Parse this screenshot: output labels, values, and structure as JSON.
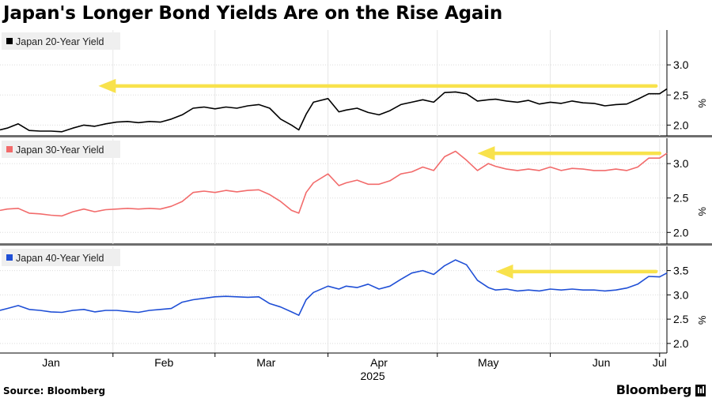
{
  "title": "Japan's Longer Bond Yields Are on the Rise Again",
  "source": "Source: Bloomberg",
  "brand": "Bloomberg",
  "unit_label": "%",
  "chart_data": [
    {
      "type": "line",
      "series": [
        {
          "name": "Japan 20-Year Yield",
          "color": "#000000",
          "x": [
            "2025-01-01",
            "2025-01-03",
            "2025-01-06",
            "2025-01-09",
            "2025-01-12",
            "2025-01-15",
            "2025-01-18",
            "2025-01-21",
            "2025-01-24",
            "2025-01-27",
            "2025-01-30",
            "2025-02-02",
            "2025-02-05",
            "2025-02-08",
            "2025-02-11",
            "2025-02-14",
            "2025-02-17",
            "2025-02-20",
            "2025-02-23",
            "2025-02-26",
            "2025-03-01",
            "2025-03-04",
            "2025-03-07",
            "2025-03-10",
            "2025-03-13",
            "2025-03-16",
            "2025-03-19",
            "2025-03-22",
            "2025-03-24",
            "2025-03-26",
            "2025-03-28",
            "2025-04-01",
            "2025-04-04",
            "2025-04-06",
            "2025-04-09",
            "2025-04-12",
            "2025-04-15",
            "2025-04-18",
            "2025-04-21",
            "2025-04-24",
            "2025-04-27",
            "2025-04-30",
            "2025-05-03",
            "2025-05-06",
            "2025-05-09",
            "2025-05-12",
            "2025-05-15",
            "2025-05-17",
            "2025-05-20",
            "2025-05-23",
            "2025-05-26",
            "2025-05-29",
            "2025-06-01",
            "2025-06-04",
            "2025-06-07",
            "2025-06-10",
            "2025-06-13",
            "2025-06-16",
            "2025-06-19",
            "2025-06-22",
            "2025-06-25",
            "2025-06-28",
            "2025-07-01",
            "2025-07-03"
          ],
          "values": [
            1.92,
            1.95,
            2.02,
            1.91,
            1.9,
            1.9,
            1.89,
            1.95,
            2.0,
            1.98,
            2.02,
            2.05,
            2.06,
            2.04,
            2.06,
            2.05,
            2.1,
            2.17,
            2.28,
            2.3,
            2.27,
            2.3,
            2.28,
            2.32,
            2.34,
            2.28,
            2.1,
            2.0,
            1.92,
            2.18,
            2.38,
            2.44,
            2.22,
            2.25,
            2.28,
            2.21,
            2.17,
            2.24,
            2.34,
            2.38,
            2.42,
            2.38,
            2.54,
            2.55,
            2.52,
            2.4,
            2.42,
            2.43,
            2.4,
            2.38,
            2.41,
            2.35,
            2.38,
            2.36,
            2.4,
            2.37,
            2.36,
            2.32,
            2.34,
            2.35,
            2.43,
            2.52,
            2.52,
            2.6
          ]
        }
      ],
      "y_ticks": [
        2.0,
        2.5,
        3.0
      ],
      "ylim": [
        1.9,
        3.5
      ],
      "annotation": {
        "type": "arrow",
        "from_date": "2025-06-30",
        "to_date": "2025-01-28",
        "y": 2.65,
        "color": "#f8e24c"
      }
    },
    {
      "type": "line",
      "series": [
        {
          "name": "Japan 30-Year Yield",
          "color": "#f26b6b",
          "x": [
            "2025-01-01",
            "2025-01-03",
            "2025-01-06",
            "2025-01-09",
            "2025-01-12",
            "2025-01-15",
            "2025-01-18",
            "2025-01-21",
            "2025-01-24",
            "2025-01-27",
            "2025-01-30",
            "2025-02-02",
            "2025-02-05",
            "2025-02-08",
            "2025-02-11",
            "2025-02-14",
            "2025-02-17",
            "2025-02-20",
            "2025-02-23",
            "2025-02-26",
            "2025-03-01",
            "2025-03-04",
            "2025-03-07",
            "2025-03-10",
            "2025-03-13",
            "2025-03-16",
            "2025-03-19",
            "2025-03-22",
            "2025-03-24",
            "2025-03-26",
            "2025-03-28",
            "2025-04-01",
            "2025-04-04",
            "2025-04-06",
            "2025-04-09",
            "2025-04-12",
            "2025-04-15",
            "2025-04-18",
            "2025-04-21",
            "2025-04-24",
            "2025-04-27",
            "2025-04-30",
            "2025-05-03",
            "2025-05-06",
            "2025-05-09",
            "2025-05-12",
            "2025-05-15",
            "2025-05-17",
            "2025-05-20",
            "2025-05-23",
            "2025-05-26",
            "2025-05-29",
            "2025-06-01",
            "2025-06-04",
            "2025-06-07",
            "2025-06-10",
            "2025-06-13",
            "2025-06-16",
            "2025-06-19",
            "2025-06-22",
            "2025-06-25",
            "2025-06-28",
            "2025-07-01",
            "2025-07-03"
          ],
          "values": [
            2.32,
            2.34,
            2.35,
            2.28,
            2.27,
            2.25,
            2.24,
            2.3,
            2.34,
            2.3,
            2.33,
            2.34,
            2.35,
            2.34,
            2.35,
            2.34,
            2.38,
            2.45,
            2.58,
            2.6,
            2.58,
            2.61,
            2.59,
            2.61,
            2.62,
            2.55,
            2.45,
            2.32,
            2.28,
            2.58,
            2.72,
            2.85,
            2.68,
            2.72,
            2.76,
            2.7,
            2.7,
            2.75,
            2.85,
            2.88,
            2.95,
            2.9,
            3.1,
            3.18,
            3.05,
            2.9,
            3.0,
            2.96,
            2.92,
            2.9,
            2.92,
            2.9,
            2.95,
            2.9,
            2.93,
            2.92,
            2.9,
            2.9,
            2.92,
            2.9,
            2.95,
            3.08,
            3.08,
            3.15
          ]
        }
      ],
      "y_ticks": [
        2.0,
        2.5,
        3.0
      ],
      "ylim": [
        1.9,
        3.3
      ],
      "annotation": {
        "type": "arrow",
        "from_date": "2025-07-01",
        "to_date": "2025-05-12",
        "y": 3.15,
        "color": "#f8e24c"
      }
    },
    {
      "type": "line",
      "series": [
        {
          "name": "Japan 40-Year Yield",
          "color": "#1f4fd6",
          "x": [
            "2025-01-01",
            "2025-01-03",
            "2025-01-06",
            "2025-01-09",
            "2025-01-12",
            "2025-01-15",
            "2025-01-18",
            "2025-01-21",
            "2025-01-24",
            "2025-01-27",
            "2025-01-30",
            "2025-02-02",
            "2025-02-05",
            "2025-02-08",
            "2025-02-11",
            "2025-02-14",
            "2025-02-17",
            "2025-02-20",
            "2025-02-23",
            "2025-02-26",
            "2025-03-01",
            "2025-03-04",
            "2025-03-07",
            "2025-03-10",
            "2025-03-13",
            "2025-03-16",
            "2025-03-19",
            "2025-03-22",
            "2025-03-24",
            "2025-03-26",
            "2025-03-28",
            "2025-04-01",
            "2025-04-04",
            "2025-04-06",
            "2025-04-09",
            "2025-04-12",
            "2025-04-15",
            "2025-04-18",
            "2025-04-21",
            "2025-04-24",
            "2025-04-27",
            "2025-04-30",
            "2025-05-03",
            "2025-05-06",
            "2025-05-09",
            "2025-05-12",
            "2025-05-15",
            "2025-05-17",
            "2025-05-20",
            "2025-05-23",
            "2025-05-26",
            "2025-05-29",
            "2025-06-01",
            "2025-06-04",
            "2025-06-07",
            "2025-06-10",
            "2025-06-13",
            "2025-06-16",
            "2025-06-19",
            "2025-06-22",
            "2025-06-25",
            "2025-06-28",
            "2025-07-01",
            "2025-07-03"
          ],
          "values": [
            2.68,
            2.72,
            2.78,
            2.7,
            2.68,
            2.65,
            2.64,
            2.68,
            2.7,
            2.65,
            2.68,
            2.68,
            2.66,
            2.64,
            2.68,
            2.7,
            2.72,
            2.85,
            2.9,
            2.93,
            2.96,
            2.97,
            2.96,
            2.95,
            2.96,
            2.82,
            2.75,
            2.65,
            2.58,
            2.9,
            3.05,
            3.18,
            3.12,
            3.18,
            3.15,
            3.22,
            3.12,
            3.18,
            3.32,
            3.45,
            3.5,
            3.42,
            3.6,
            3.72,
            3.62,
            3.3,
            3.15,
            3.1,
            3.12,
            3.08,
            3.1,
            3.08,
            3.12,
            3.1,
            3.12,
            3.1,
            3.1,
            3.08,
            3.1,
            3.14,
            3.22,
            3.38,
            3.37,
            3.45
          ]
        }
      ],
      "y_ticks": [
        2.0,
        2.5,
        3.0,
        3.5
      ],
      "ylim": [
        1.9,
        3.9
      ],
      "annotation": {
        "type": "arrow",
        "from_date": "2025-06-30",
        "to_date": "2025-05-17",
        "y": 3.48,
        "color": "#f8e24c"
      }
    }
  ],
  "x_axis": {
    "range": [
      "2025-01-01",
      "2025-07-03"
    ],
    "ticks": [
      {
        "date": "2025-01-15",
        "label": "Jan"
      },
      {
        "date": "2025-02-15",
        "label": "Feb"
      },
      {
        "date": "2025-03-15",
        "label": "Mar"
      },
      {
        "date": "2025-04-15",
        "label": "Apr"
      },
      {
        "date": "2025-05-15",
        "label": "May"
      },
      {
        "date": "2025-06-15",
        "label": "Jun"
      },
      {
        "date": "2025-07-01",
        "label": "Jul"
      }
    ],
    "month_dividers": [
      "2025-02-01",
      "2025-03-01",
      "2025-04-01",
      "2025-05-01",
      "2025-06-01",
      "2025-07-01"
    ],
    "year_label": "2025"
  }
}
